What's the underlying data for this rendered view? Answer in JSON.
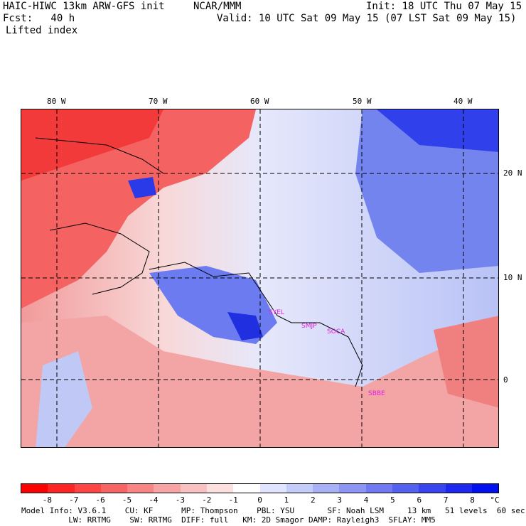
{
  "header": {
    "model": "HAIC-HIWC 13km ARW-GFS init",
    "org": "NCAR/MMM",
    "init": "Init: 18 UTC Thu 07 May 15",
    "fcst": "Fcst:   40 h",
    "valid": "Valid: 10 UTC Sat 09 May 15 (07 LST Sat 09 May 15)",
    "field": "Lifted index"
  },
  "map": {
    "lon_labels": [
      "80 W",
      "70 W",
      "60 W",
      "50 W",
      "40 W"
    ],
    "lat_labels": [
      "20 N",
      "10 N",
      "0"
    ],
    "stations": [
      "SYEL",
      "SMJP",
      "SOCA",
      "SBBE"
    ],
    "colors": {
      "strong_neg": "#ff2020",
      "neg": "#f07070",
      "light_neg": "#f6b0b0",
      "neutral": "#ffffff",
      "light_pos": "#c8d0f8",
      "pos": "#8090f0",
      "strong_pos": "#2030f0",
      "station": "#e020e0"
    }
  },
  "colorbar": {
    "labels": [
      "-8",
      "-7",
      "-6",
      "-5",
      "-4",
      "-3",
      "-2",
      "-1",
      "0",
      "1",
      "2",
      "3",
      "4",
      "5",
      "6",
      "7",
      "8",
      "°C"
    ],
    "colors": [
      "#ff0000",
      "#ff2424",
      "#ff4444",
      "#f86464",
      "#f88484",
      "#f8a4a4",
      "#f8c0c0",
      "#fce0e0",
      "#ffffff",
      "#e0e4fc",
      "#c4ccfa",
      "#a8b0f6",
      "#8c94f4",
      "#7078f2",
      "#5460f0",
      "#3844f0",
      "#1c28f0",
      "#0010f0"
    ]
  },
  "footer": {
    "line1": "Model Info: V3.6.1    CU: KF      MP: Thompson    PBL: YSU       SF: Noah LSM     13 km   51 levels  60 sec",
    "line2": "          LW: RRTMG    SW: RRTMG  DIFF: full   KM: 2D Smagor DAMP: Rayleigh3  SFLAY: MM5"
  }
}
